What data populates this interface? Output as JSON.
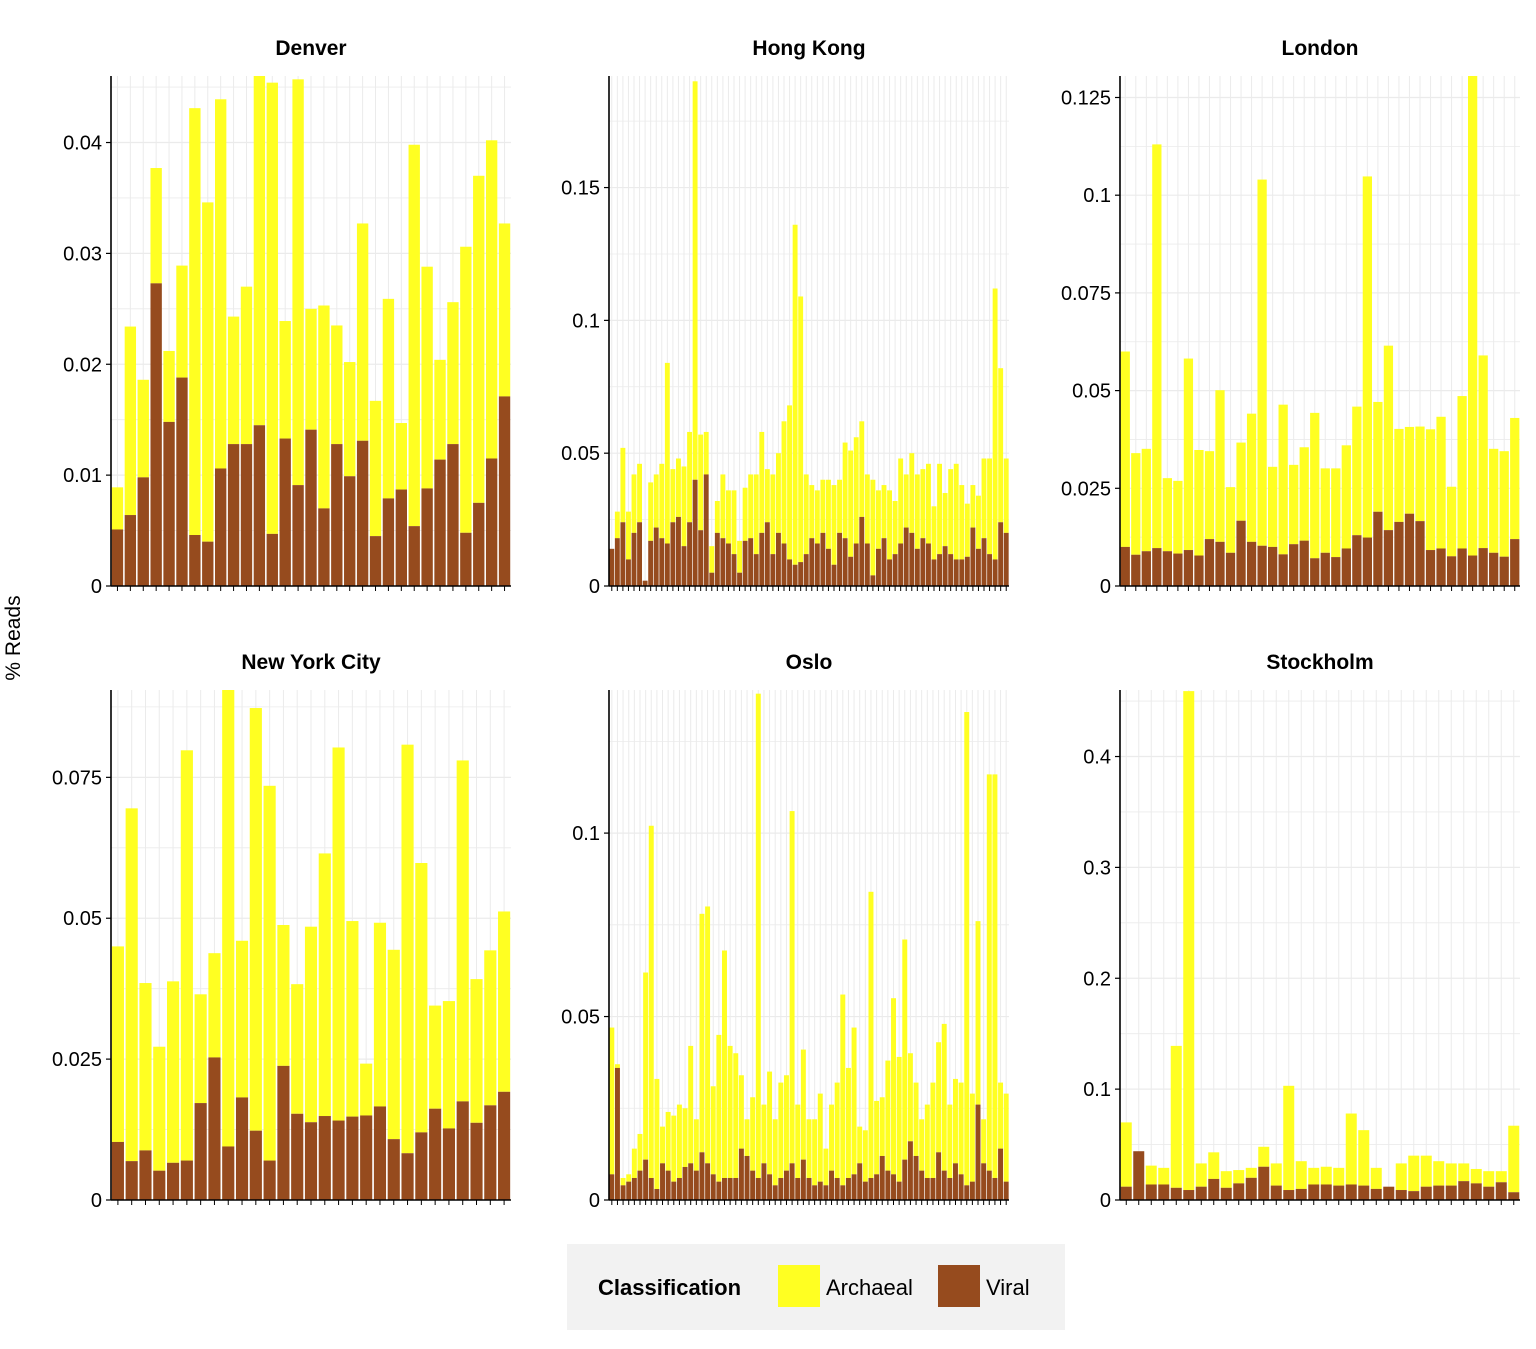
{
  "figure": {
    "ylabel": "% Reads"
  },
  "legend": {
    "title": "Classification",
    "items": [
      {
        "label": "Archaeal",
        "color": "#FFFF22"
      },
      {
        "label": "Viral",
        "color": "#964B1E"
      }
    ]
  },
  "chart_data": [
    {
      "type": "bar",
      "stacked": true,
      "title": "Denver",
      "ylim": [
        0,
        0.046
      ],
      "yticks": [
        0,
        0.01,
        0.02,
        0.03,
        0.04
      ],
      "yticklabels": [
        "0",
        "0.01",
        "0.02",
        "0.03",
        "0.04"
      ],
      "grid": true,
      "series": [
        {
          "name": "Viral",
          "values": [
            0.0051,
            0.0064,
            0.0098,
            0.0273,
            0.0148,
            0.0188,
            0.0046,
            0.004,
            0.0106,
            0.0128,
            0.0128,
            0.0145,
            0.0047,
            0.0133,
            0.0091,
            0.0141,
            0.007,
            0.0128,
            0.0099,
            0.0131,
            0.0045,
            0.0079,
            0.0087,
            0.0054,
            0.0088,
            0.0114,
            0.0128,
            0.0048,
            0.0075,
            0.0115,
            0.0171
          ]
        },
        {
          "name": "Archaeal",
          "values": [
            0.0038,
            0.017,
            0.0088,
            0.0104,
            0.0064,
            0.0101,
            0.0385,
            0.0306,
            0.0333,
            0.0115,
            0.0142,
            0.0315,
            0.0407,
            0.0106,
            0.0366,
            0.0109,
            0.0183,
            0.0107,
            0.0103,
            0.0196,
            0.0122,
            0.018,
            0.006,
            0.0344,
            0.02,
            0.009,
            0.0128,
            0.0258,
            0.0295,
            0.0287,
            0.0156
          ]
        }
      ]
    },
    {
      "type": "bar",
      "stacked": true,
      "title": "Hong Kong",
      "ylim": [
        0,
        0.192
      ],
      "yticks": [
        0,
        0.05,
        0.1,
        0.15
      ],
      "yticklabels": [
        "0",
        "0.05",
        "0.1",
        "0.15"
      ],
      "grid": true,
      "series": [
        {
          "name": "Viral",
          "values": [
            0.014,
            0.018,
            0.024,
            0.01,
            0.02,
            0.024,
            0.002,
            0.017,
            0.022,
            0.018,
            0.016,
            0.024,
            0.026,
            0.015,
            0.024,
            0.04,
            0.021,
            0.042,
            0.005,
            0.02,
            0.018,
            0.016,
            0.012,
            0.005,
            0.017,
            0.018,
            0.012,
            0.02,
            0.024,
            0.012,
            0.02,
            0.016,
            0.01,
            0.008,
            0.009,
            0.012,
            0.018,
            0.016,
            0.02,
            0.014,
            0.008,
            0.02,
            0.018,
            0.011,
            0.016,
            0.026,
            0.016,
            0.004,
            0.014,
            0.018,
            0.01,
            0.012,
            0.016,
            0.022,
            0.02,
            0.014,
            0.018,
            0.016,
            0.01,
            0.012,
            0.015,
            0.012,
            0.01,
            0.01,
            0.011,
            0.022,
            0.014,
            0.018,
            0.012,
            0.01,
            0.024,
            0.02
          ]
        },
        {
          "name": "Archaeal",
          "values": [
            0.0,
            0.01,
            0.028,
            0.018,
            0.022,
            0.022,
            0.0,
            0.022,
            0.02,
            0.028,
            0.068,
            0.02,
            0.022,
            0.03,
            0.034,
            0.15,
            0.036,
            0.016,
            0.01,
            0.012,
            0.024,
            0.02,
            0.024,
            0.012,
            0.02,
            0.024,
            0.03,
            0.038,
            0.02,
            0.03,
            0.03,
            0.046,
            0.058,
            0.128,
            0.1,
            0.03,
            0.02,
            0.02,
            0.02,
            0.026,
            0.03,
            0.02,
            0.036,
            0.04,
            0.04,
            0.036,
            0.026,
            0.036,
            0.022,
            0.02,
            0.026,
            0.02,
            0.032,
            0.02,
            0.03,
            0.028,
            0.026,
            0.03,
            0.02,
            0.034,
            0.02,
            0.032,
            0.036,
            0.028,
            0.02,
            0.016,
            0.02,
            0.03,
            0.036,
            0.102,
            0.058,
            0.028
          ]
        }
      ]
    },
    {
      "type": "bar",
      "stacked": true,
      "title": "London",
      "ylim": [
        0,
        0.1305
      ],
      "yticks": [
        0,
        0.025,
        0.05,
        0.075,
        0.1,
        0.125
      ],
      "yticklabels": [
        "0",
        "0.025",
        "0.05",
        "0.075",
        "0.1",
        "0.125"
      ],
      "grid": true,
      "series": [
        {
          "name": "Viral",
          "values": [
            0.01,
            0.008,
            0.0089,
            0.0097,
            0.0089,
            0.0083,
            0.0092,
            0.0078,
            0.012,
            0.0113,
            0.0085,
            0.0167,
            0.0113,
            0.0103,
            0.01,
            0.0081,
            0.0107,
            0.0116,
            0.0071,
            0.0085,
            0.0074,
            0.0096,
            0.013,
            0.0124,
            0.019,
            0.0143,
            0.0164,
            0.0185,
            0.0166,
            0.0092,
            0.0096,
            0.0076,
            0.0096,
            0.0078,
            0.0097,
            0.0085,
            0.0075,
            0.012
          ]
        },
        {
          "name": "Archaeal",
          "values": [
            0.05,
            0.026,
            0.0262,
            0.1033,
            0.0187,
            0.0186,
            0.049,
            0.027,
            0.0225,
            0.0388,
            0.0168,
            0.02,
            0.0328,
            0.0937,
            0.0205,
            0.0383,
            0.0203,
            0.0239,
            0.0372,
            0.0216,
            0.0227,
            0.0264,
            0.0329,
            0.0924,
            0.0281,
            0.0472,
            0.0238,
            0.0222,
            0.0242,
            0.0309,
            0.0337,
            0.0178,
            0.039,
            0.1231,
            0.0493,
            0.0266,
            0.027,
            0.031
          ]
        }
      ]
    },
    {
      "type": "bar",
      "stacked": true,
      "title": "New York City",
      "ylim": [
        0,
        0.0905
      ],
      "yticks": [
        0,
        0.025,
        0.05,
        0.075
      ],
      "yticklabels": [
        "0",
        "0.025",
        "0.05",
        "0.075"
      ],
      "grid": true,
      "series": [
        {
          "name": "Viral",
          "values": [
            0.0103,
            0.0069,
            0.0088,
            0.0052,
            0.0066,
            0.007,
            0.0172,
            0.0253,
            0.0095,
            0.0182,
            0.0123,
            0.007,
            0.0238,
            0.0153,
            0.0138,
            0.0149,
            0.0141,
            0.0148,
            0.015,
            0.0166,
            0.0108,
            0.0083,
            0.012,
            0.0162,
            0.0127,
            0.0175,
            0.0137,
            0.0168,
            0.0192
          ]
        },
        {
          "name": "Archaeal",
          "values": [
            0.0347,
            0.0626,
            0.0297,
            0.022,
            0.0322,
            0.0728,
            0.0193,
            0.0185,
            0.081,
            0.0278,
            0.075,
            0.0665,
            0.025,
            0.023,
            0.0347,
            0.0466,
            0.0662,
            0.0347,
            0.0092,
            0.0326,
            0.0336,
            0.0725,
            0.0478,
            0.0183,
            0.0226,
            0.0605,
            0.0255,
            0.0275,
            0.032
          ]
        }
      ]
    },
    {
      "type": "bar",
      "stacked": true,
      "title": "Oslo",
      "ylim": [
        0,
        0.139
      ],
      "yticks": [
        0,
        0.05,
        0.1
      ],
      "yticklabels": [
        "0",
        "0.05",
        "0.1"
      ],
      "grid": true,
      "series": [
        {
          "name": "Viral",
          "values": [
            0.007,
            0.036,
            0.004,
            0.005,
            0.006,
            0.008,
            0.011,
            0.006,
            0.003,
            0.01,
            0.008,
            0.005,
            0.006,
            0.009,
            0.01,
            0.008,
            0.013,
            0.01,
            0.007,
            0.005,
            0.006,
            0.006,
            0.006,
            0.014,
            0.012,
            0.008,
            0.006,
            0.01,
            0.007,
            0.004,
            0.006,
            0.008,
            0.01,
            0.006,
            0.011,
            0.006,
            0.004,
            0.005,
            0.004,
            0.008,
            0.006,
            0.004,
            0.006,
            0.007,
            0.01,
            0.005,
            0.006,
            0.007,
            0.012,
            0.008,
            0.007,
            0.005,
            0.011,
            0.016,
            0.012,
            0.008,
            0.006,
            0.006,
            0.013,
            0.008,
            0.006,
            0.01,
            0.007,
            0.004,
            0.005,
            0.026,
            0.01,
            0.008,
            0.006,
            0.014,
            0.005
          ]
        },
        {
          "name": "Archaeal",
          "values": [
            0.04,
            0.001,
            0.002,
            0.002,
            0.008,
            0.01,
            0.051,
            0.096,
            0.03,
            0.01,
            0.016,
            0.018,
            0.02,
            0.016,
            0.032,
            0.014,
            0.065,
            0.07,
            0.024,
            0.04,
            0.062,
            0.036,
            0.034,
            0.02,
            0.01,
            0.02,
            0.132,
            0.016,
            0.028,
            0.018,
            0.026,
            0.026,
            0.096,
            0.02,
            0.03,
            0.016,
            0.018,
            0.024,
            0.01,
            0.018,
            0.026,
            0.052,
            0.03,
            0.04,
            0.01,
            0.014,
            0.078,
            0.02,
            0.016,
            0.03,
            0.048,
            0.034,
            0.06,
            0.024,
            0.02,
            0.014,
            0.02,
            0.026,
            0.03,
            0.04,
            0.02,
            0.023,
            0.025,
            0.129,
            0.024,
            0.05,
            0.012,
            0.108,
            0.11,
            0.018,
            0.024
          ]
        }
      ]
    },
    {
      "type": "bar",
      "stacked": true,
      "title": "Stockholm",
      "ylim": [
        0,
        0.46
      ],
      "yticks": [
        0,
        0.1,
        0.2,
        0.3,
        0.4
      ],
      "yticklabels": [
        "0",
        "0.1",
        "0.2",
        "0.3",
        "0.4"
      ],
      "grid": true,
      "series": [
        {
          "name": "Viral",
          "values": [
            0.012,
            0.044,
            0.014,
            0.014,
            0.011,
            0.009,
            0.012,
            0.019,
            0.011,
            0.015,
            0.02,
            0.03,
            0.013,
            0.009,
            0.01,
            0.014,
            0.014,
            0.013,
            0.014,
            0.013,
            0.01,
            0.012,
            0.009,
            0.008,
            0.012,
            0.013,
            0.013,
            0.017,
            0.015,
            0.012,
            0.016,
            0.007
          ]
        },
        {
          "name": "Archaeal",
          "values": [
            0.058,
            0.0,
            0.017,
            0.015,
            0.128,
            0.45,
            0.021,
            0.024,
            0.015,
            0.012,
            0.009,
            0.018,
            0.02,
            0.094,
            0.025,
            0.015,
            0.016,
            0.016,
            0.064,
            0.05,
            0.019,
            0.0,
            0.024,
            0.032,
            0.028,
            0.022,
            0.02,
            0.016,
            0.013,
            0.014,
            0.01,
            0.06
          ]
        }
      ]
    }
  ]
}
